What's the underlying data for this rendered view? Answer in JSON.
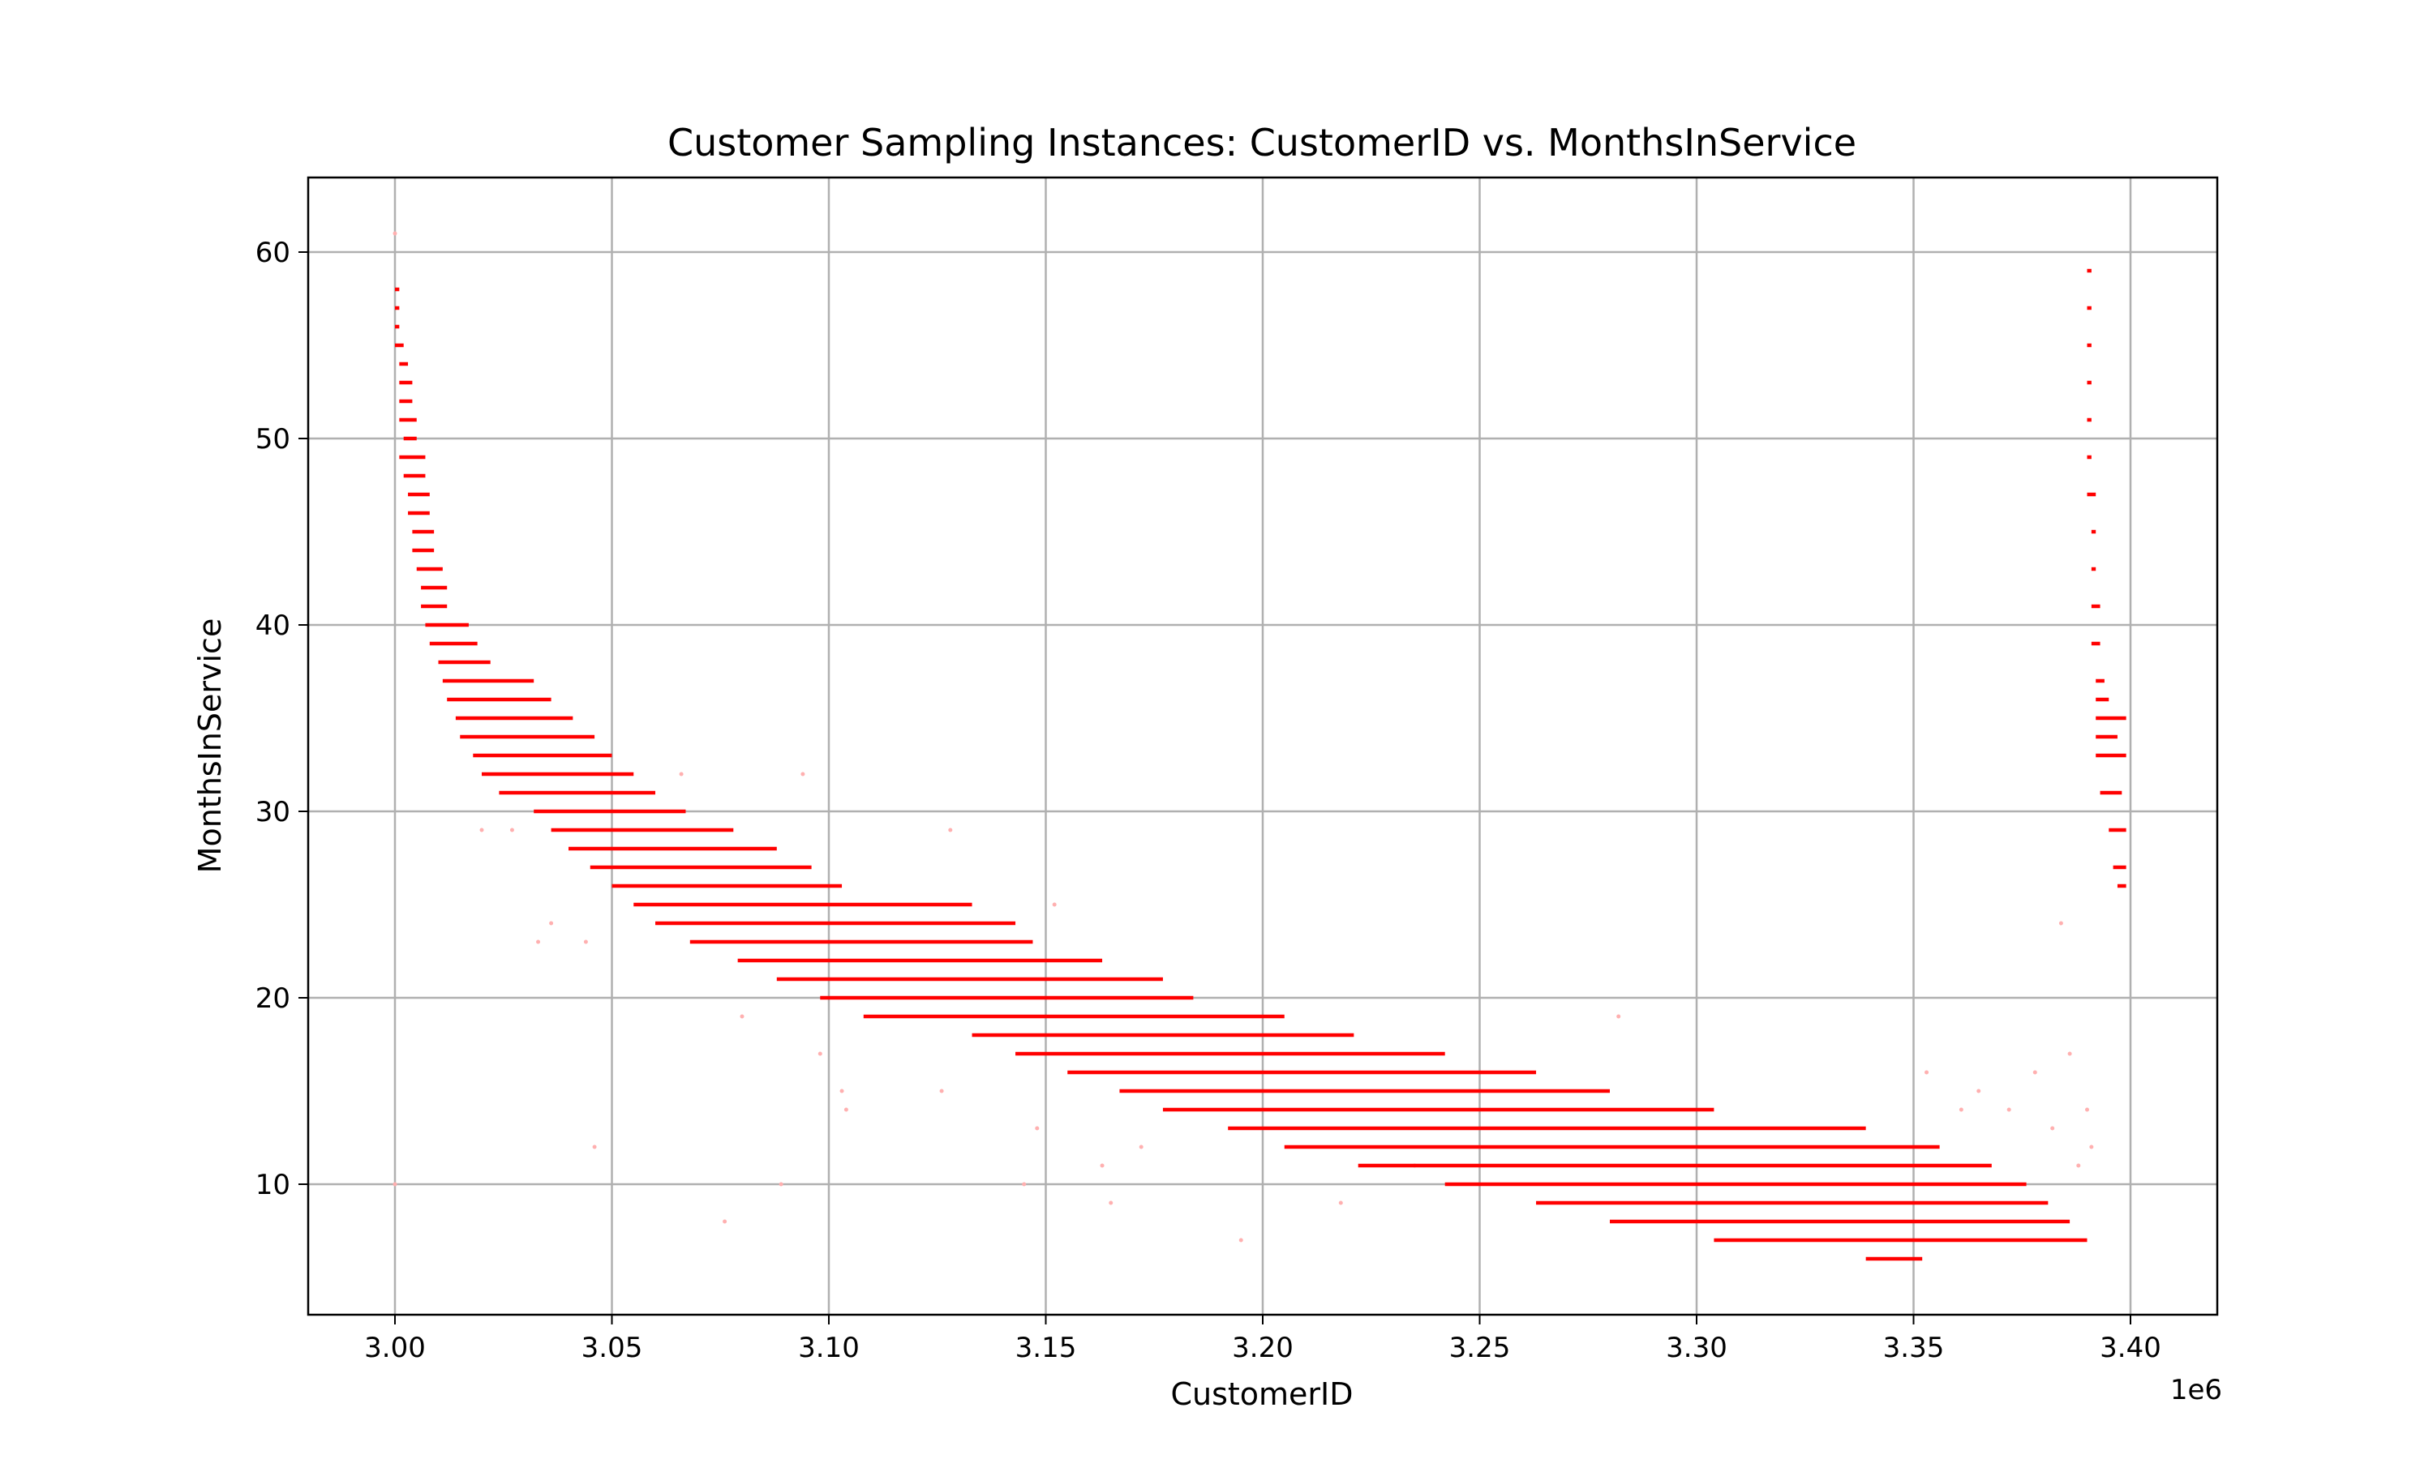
{
  "chart_data": {
    "type": "scatter",
    "title": "Customer Sampling Instances: CustomerID vs. MonthsInService",
    "xlabel": "CustomerID",
    "ylabel": "MonthsInService",
    "x_offset_label": "1e6",
    "xlim": [
      2.98,
      3.42
    ],
    "ylim": [
      3,
      64
    ],
    "x_ticks": [
      3.0,
      3.05,
      3.1,
      3.15,
      3.2,
      3.25,
      3.3,
      3.35,
      3.4
    ],
    "x_tick_labels": [
      "3.00",
      "3.05",
      "3.10",
      "3.15",
      "3.20",
      "3.25",
      "3.30",
      "3.35",
      "3.40"
    ],
    "y_ticks": [
      10,
      20,
      30,
      40,
      50,
      60
    ],
    "y_tick_labels": [
      "10",
      "20",
      "30",
      "40",
      "50",
      "60"
    ],
    "grid": true,
    "marker_color": "#ff0000",
    "faint_color": "#ffb0b0",
    "series": [
      {
        "segments": [
          {
            "x0": 3.0,
            "x1": 3.001,
            "y": 58
          },
          {
            "x0": 3.0,
            "x1": 3.001,
            "y": 57
          },
          {
            "x0": 3.0,
            "x1": 3.001,
            "y": 56
          },
          {
            "x0": 3.0,
            "x1": 3.002,
            "y": 55
          },
          {
            "x0": 3.001,
            "x1": 3.003,
            "y": 54
          },
          {
            "x0": 3.001,
            "x1": 3.004,
            "y": 53
          },
          {
            "x0": 3.001,
            "x1": 3.004,
            "y": 52
          },
          {
            "x0": 3.001,
            "x1": 3.005,
            "y": 51
          },
          {
            "x0": 3.002,
            "x1": 3.005,
            "y": 50
          },
          {
            "x0": 3.001,
            "x1": 3.007,
            "y": 49
          },
          {
            "x0": 3.002,
            "x1": 3.007,
            "y": 48
          },
          {
            "x0": 3.003,
            "x1": 3.008,
            "y": 47
          },
          {
            "x0": 3.003,
            "x1": 3.008,
            "y": 46
          },
          {
            "x0": 3.004,
            "x1": 3.009,
            "y": 45
          },
          {
            "x0": 3.004,
            "x1": 3.009,
            "y": 44
          },
          {
            "x0": 3.005,
            "x1": 3.011,
            "y": 43
          },
          {
            "x0": 3.006,
            "x1": 3.012,
            "y": 42
          },
          {
            "x0": 3.006,
            "x1": 3.012,
            "y": 41
          },
          {
            "x0": 3.007,
            "x1": 3.017,
            "y": 40
          },
          {
            "x0": 3.008,
            "x1": 3.019,
            "y": 39
          },
          {
            "x0": 3.01,
            "x1": 3.022,
            "y": 38
          },
          {
            "x0": 3.011,
            "x1": 3.032,
            "y": 37
          },
          {
            "x0": 3.012,
            "x1": 3.036,
            "y": 36
          },
          {
            "x0": 3.014,
            "x1": 3.041,
            "y": 35
          },
          {
            "x0": 3.015,
            "x1": 3.046,
            "y": 34
          },
          {
            "x0": 3.018,
            "x1": 3.05,
            "y": 33
          },
          {
            "x0": 3.02,
            "x1": 3.055,
            "y": 32
          },
          {
            "x0": 3.024,
            "x1": 3.06,
            "y": 31
          },
          {
            "x0": 3.032,
            "x1": 3.067,
            "y": 30
          },
          {
            "x0": 3.036,
            "x1": 3.078,
            "y": 29
          },
          {
            "x0": 3.04,
            "x1": 3.088,
            "y": 28
          },
          {
            "x0": 3.045,
            "x1": 3.096,
            "y": 27
          },
          {
            "x0": 3.05,
            "x1": 3.103,
            "y": 26
          },
          {
            "x0": 3.055,
            "x1": 3.133,
            "y": 25
          },
          {
            "x0": 3.06,
            "x1": 3.143,
            "y": 24
          },
          {
            "x0": 3.068,
            "x1": 3.147,
            "y": 23
          },
          {
            "x0": 3.079,
            "x1": 3.163,
            "y": 22
          },
          {
            "x0": 3.088,
            "x1": 3.177,
            "y": 21
          },
          {
            "x0": 3.098,
            "x1": 3.184,
            "y": 20
          },
          {
            "x0": 3.108,
            "x1": 3.205,
            "y": 19
          },
          {
            "x0": 3.133,
            "x1": 3.221,
            "y": 18
          },
          {
            "x0": 3.143,
            "x1": 3.242,
            "y": 17
          },
          {
            "x0": 3.155,
            "x1": 3.263,
            "y": 16
          },
          {
            "x0": 3.167,
            "x1": 3.28,
            "y": 15
          },
          {
            "x0": 3.177,
            "x1": 3.304,
            "y": 14
          },
          {
            "x0": 3.192,
            "x1": 3.339,
            "y": 13
          },
          {
            "x0": 3.205,
            "x1": 3.356,
            "y": 12
          },
          {
            "x0": 3.222,
            "x1": 3.368,
            "y": 11
          },
          {
            "x0": 3.242,
            "x1": 3.376,
            "y": 10
          },
          {
            "x0": 3.263,
            "x1": 3.381,
            "y": 9
          },
          {
            "x0": 3.28,
            "x1": 3.386,
            "y": 8
          },
          {
            "x0": 3.304,
            "x1": 3.39,
            "y": 7
          },
          {
            "x0": 3.339,
            "x1": 3.352,
            "y": 6
          }
        ],
        "right_cluster": [
          {
            "x0": 3.39,
            "x1": 3.391,
            "y": 59
          },
          {
            "x0": 3.39,
            "x1": 3.391,
            "y": 57
          },
          {
            "x0": 3.39,
            "x1": 3.391,
            "y": 55
          },
          {
            "x0": 3.39,
            "x1": 3.391,
            "y": 53
          },
          {
            "x0": 3.39,
            "x1": 3.391,
            "y": 51
          },
          {
            "x0": 3.39,
            "x1": 3.391,
            "y": 49
          },
          {
            "x0": 3.39,
            "x1": 3.392,
            "y": 47
          },
          {
            "x0": 3.391,
            "x1": 3.392,
            "y": 45
          },
          {
            "x0": 3.391,
            "x1": 3.392,
            "y": 43
          },
          {
            "x0": 3.391,
            "x1": 3.393,
            "y": 41
          },
          {
            "x0": 3.391,
            "x1": 3.393,
            "y": 39
          },
          {
            "x0": 3.392,
            "x1": 3.394,
            "y": 37
          },
          {
            "x0": 3.392,
            "x1": 3.395,
            "y": 36
          },
          {
            "x0": 3.392,
            "x1": 3.399,
            "y": 35
          },
          {
            "x0": 3.392,
            "x1": 3.397,
            "y": 34
          },
          {
            "x0": 3.392,
            "x1": 3.399,
            "y": 33
          },
          {
            "x0": 3.393,
            "x1": 3.398,
            "y": 31
          },
          {
            "x0": 3.395,
            "x1": 3.399,
            "y": 29
          },
          {
            "x0": 3.396,
            "x1": 3.399,
            "y": 27
          },
          {
            "x0": 3.397,
            "x1": 3.399,
            "y": 26
          }
        ],
        "faint_points": [
          {
            "x": 3.0,
            "y": 61
          },
          {
            "x": 3.0,
            "y": 10
          },
          {
            "x": 3.02,
            "y": 29
          },
          {
            "x": 3.027,
            "y": 29
          },
          {
            "x": 3.033,
            "y": 23
          },
          {
            "x": 3.036,
            "y": 24
          },
          {
            "x": 3.044,
            "y": 23
          },
          {
            "x": 3.046,
            "y": 12
          },
          {
            "x": 3.066,
            "y": 32
          },
          {
            "x": 3.076,
            "y": 8
          },
          {
            "x": 3.08,
            "y": 19
          },
          {
            "x": 3.089,
            "y": 10
          },
          {
            "x": 3.094,
            "y": 32
          },
          {
            "x": 3.098,
            "y": 17
          },
          {
            "x": 3.103,
            "y": 15
          },
          {
            "x": 3.104,
            "y": 14
          },
          {
            "x": 3.128,
            "y": 29
          },
          {
            "x": 3.126,
            "y": 15
          },
          {
            "x": 3.145,
            "y": 10
          },
          {
            "x": 3.148,
            "y": 13
          },
          {
            "x": 3.152,
            "y": 25
          },
          {
            "x": 3.163,
            "y": 11
          },
          {
            "x": 3.165,
            "y": 9
          },
          {
            "x": 3.172,
            "y": 12
          },
          {
            "x": 3.195,
            "y": 7
          },
          {
            "x": 3.218,
            "y": 9
          },
          {
            "x": 3.235,
            "y": 11
          },
          {
            "x": 3.282,
            "y": 19
          },
          {
            "x": 3.353,
            "y": 16
          },
          {
            "x": 3.361,
            "y": 14
          },
          {
            "x": 3.365,
            "y": 15
          },
          {
            "x": 3.372,
            "y": 14
          },
          {
            "x": 3.378,
            "y": 16
          },
          {
            "x": 3.382,
            "y": 13
          },
          {
            "x": 3.384,
            "y": 24
          },
          {
            "x": 3.386,
            "y": 17
          },
          {
            "x": 3.388,
            "y": 11
          },
          {
            "x": 3.39,
            "y": 14
          },
          {
            "x": 3.391,
            "y": 12
          }
        ]
      }
    ]
  }
}
